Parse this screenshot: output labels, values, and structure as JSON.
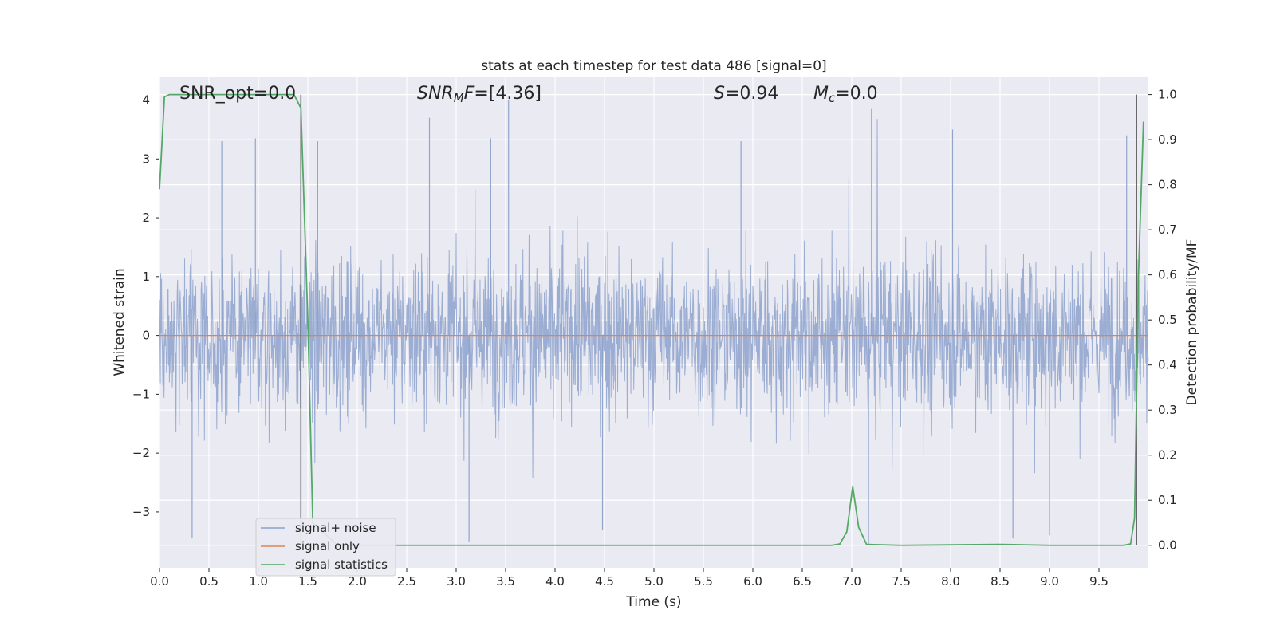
{
  "chart_data": {
    "type": "line",
    "title": "stats at each timestep for test data 486 [signal=0]",
    "xlabel": "Time (s)",
    "ylabel": "Whitened strain",
    "ylabel_right": "Detection probability/MF",
    "xlim": [
      0,
      10
    ],
    "ylim": [
      -3.95,
      4.4
    ],
    "ylim_right": [
      -0.05,
      1.04
    ],
    "x_ticks": [
      "0.0",
      "0.5",
      "1.0",
      "1.5",
      "2.0",
      "2.5",
      "3.0",
      "3.5",
      "4.0",
      "4.5",
      "5.0",
      "5.5",
      "6.0",
      "6.5",
      "7.0",
      "7.5",
      "8.0",
      "8.5",
      "9.0",
      "9.5"
    ],
    "x_tick_values": [
      0,
      0.5,
      1,
      1.5,
      2,
      2.5,
      3,
      3.5,
      4,
      4.5,
      5,
      5.5,
      6,
      6.5,
      7,
      7.5,
      8,
      8.5,
      9,
      9.5
    ],
    "y_ticks": [
      "4",
      "3",
      "2",
      "1",
      "0",
      "−1",
      "−2",
      "−3"
    ],
    "y_tick_values": [
      4,
      3,
      2,
      1,
      0,
      -1,
      -2,
      -3
    ],
    "y_right_ticks": [
      "1.0",
      "0.9",
      "0.8",
      "0.7",
      "0.6",
      "0.5",
      "0.4",
      "0.3",
      "0.2",
      "0.1",
      "0.0"
    ],
    "y_right_tick_values": [
      1.0,
      0.9,
      0.8,
      0.7,
      0.6,
      0.5,
      0.4,
      0.3,
      0.2,
      0.1,
      0.0
    ],
    "grid": true,
    "legend_position": "lower-left",
    "annotations": {
      "snr_opt": "SNR_opt=0.0",
      "snr_mf_sym": "SNR",
      "snr_mf_sub": "M",
      "snr_mf_rest": "F=[4.36]",
      "s_sym": "S",
      "s_rest": "=0.94",
      "mc_sym": "M",
      "mc_sub": "c",
      "mc_rest": "=0.0"
    },
    "vlines": [
      1.43,
      9.88
    ],
    "series": [
      {
        "name": "signal+ noise",
        "color": "#8da2cc",
        "axis": "left",
        "noise_envelope": {
          "typical_abs": 1.7,
          "peak_max": 4.05,
          "trough_min": -3.5
        },
        "notable_peaks": [
          {
            "x": 0.63,
            "y": 3.3
          },
          {
            "x": 0.97,
            "y": 3.35
          },
          {
            "x": 1.6,
            "y": 3.3
          },
          {
            "x": 2.73,
            "y": 3.7
          },
          {
            "x": 3.35,
            "y": 3.35
          },
          {
            "x": 3.53,
            "y": 4.0
          },
          {
            "x": 5.88,
            "y": 3.3
          },
          {
            "x": 7.2,
            "y": 3.85
          },
          {
            "x": 8.02,
            "y": 3.5
          },
          {
            "x": 9.78,
            "y": 3.4
          }
        ],
        "notable_troughs": [
          {
            "x": 0.33,
            "y": -3.45
          },
          {
            "x": 3.13,
            "y": -3.5
          },
          {
            "x": 4.48,
            "y": -3.3
          },
          {
            "x": 7.17,
            "y": -3.55
          },
          {
            "x": 8.63,
            "y": -3.45
          },
          {
            "x": 9.0,
            "y": -3.4
          }
        ]
      },
      {
        "name": "signal only",
        "color": "#dd8452",
        "axis": "left",
        "x": [
          0,
          10
        ],
        "y": [
          0,
          0
        ]
      },
      {
        "name": "signal statistics",
        "color": "#55a868",
        "axis": "right",
        "x": [
          0,
          0.05,
          0.1,
          0.3,
          0.6,
          0.9,
          1.2,
          1.36,
          1.43,
          1.5,
          1.55,
          1.8,
          2.5,
          4.0,
          5.5,
          6.8,
          6.88,
          6.95,
          7.01,
          7.07,
          7.15,
          7.5,
          8.0,
          8.5,
          9.0,
          9.5,
          9.75,
          9.82,
          9.86,
          9.9,
          9.95
        ],
        "y": [
          0.79,
          0.995,
          1.0,
          1.0,
          1.0,
          1.0,
          1.0,
          1.0,
          0.97,
          0.5,
          0.05,
          0.0,
          0.0,
          0.0,
          0.0,
          0.0,
          0.003,
          0.03,
          0.13,
          0.04,
          0.002,
          0.0,
          0.001,
          0.002,
          0.0,
          0.0,
          0.0,
          0.003,
          0.06,
          0.6,
          0.94
        ]
      }
    ]
  }
}
